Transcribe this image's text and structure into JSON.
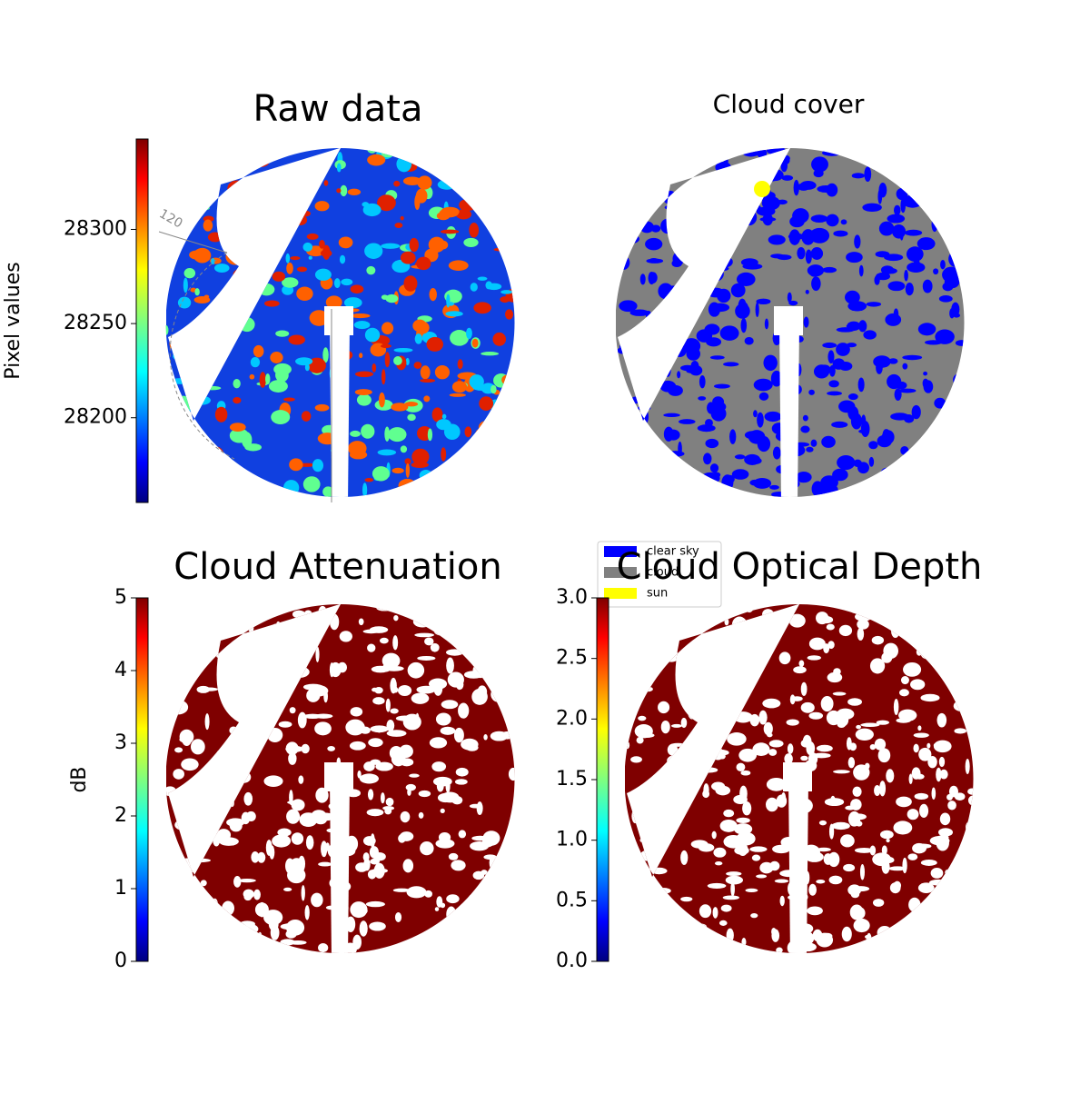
{
  "chart_data": [
    {
      "type": "image",
      "title": "Raw data",
      "colorbar_label": "Pixel values",
      "colormap": "jet",
      "clim": [
        28155,
        28348
      ],
      "ticks": [
        28200,
        28250,
        28300
      ],
      "annotations": [
        "120"
      ]
    },
    {
      "type": "image",
      "title": "Cloud cover",
      "series": [
        {
          "name": "clear sky",
          "color": "#0000ff"
        },
        {
          "name": "cloud",
          "color": "#808080"
        },
        {
          "name": "sun",
          "color": "#ffff00"
        }
      ]
    },
    {
      "type": "image",
      "title": "Cloud Attenuation",
      "colorbar_label": "dB",
      "colormap": "jet",
      "clim": [
        0,
        5
      ],
      "ticks": [
        0,
        1,
        2,
        3,
        4,
        5
      ]
    },
    {
      "type": "image",
      "title": "Cloud Optical Depth",
      "colormap": "jet",
      "clim": [
        0,
        3
      ],
      "ticks": [
        {
          "value": 0,
          "label": "0.0"
        },
        0.5,
        {
          "value": 1,
          "label": "1.0"
        },
        1.5,
        {
          "value": 2,
          "label": "2.0"
        },
        2.5,
        {
          "value": 3,
          "label": "3.0"
        }
      ]
    }
  ]
}
